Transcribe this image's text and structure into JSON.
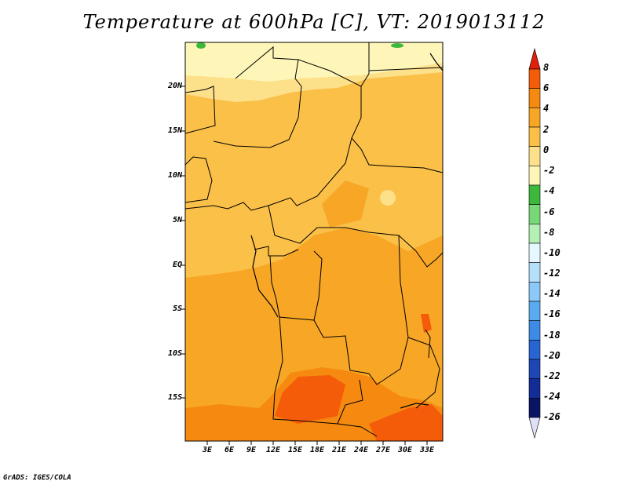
{
  "title": "Temperature at 600hPa [C], VT: 2019013112",
  "footer": "GrADS: IGES/COLA",
  "lat_labels": [
    "20N",
    "15N",
    "10N",
    "5N",
    "EQ",
    "5S",
    "10S",
    "15S"
  ],
  "lon_labels": [
    "3E",
    "6E",
    "9E",
    "12E",
    "15E",
    "18E",
    "21E",
    "24E",
    "27E",
    "30E",
    "33E"
  ],
  "colorbar": {
    "levels": [
      "8",
      "6",
      "4",
      "2",
      "0",
      "-2",
      "-4",
      "-6",
      "-8",
      "-10",
      "-12",
      "-14",
      "-16",
      "-18",
      "-20",
      "-22",
      "-24",
      "-26"
    ],
    "colors": [
      "#e0200a",
      "#f45c0a",
      "#f68a10",
      "#f8a625",
      "#fbc048",
      "#fde08a",
      "#fef6b8",
      "#3cb83c",
      "#78d878",
      "#b4f0b4",
      "#e6f8ff",
      "#b4e0fa",
      "#8cc8f8",
      "#5aaaf0",
      "#3c8ce6",
      "#2864d2",
      "#1e46b4",
      "#142d96",
      "#0a1464",
      "#e0e0f6"
    ]
  }
}
